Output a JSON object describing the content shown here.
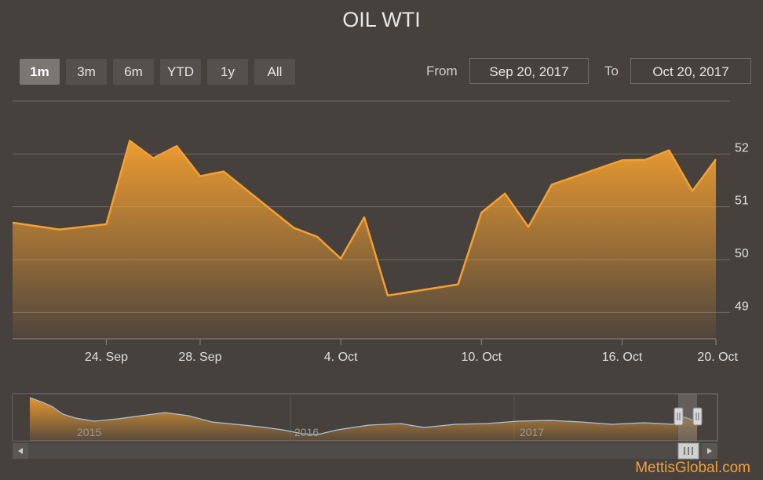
{
  "title": "OIL WTI",
  "zoom_buttons": [
    {
      "label": "1m",
      "active": true
    },
    {
      "label": "3m",
      "active": false
    },
    {
      "label": "6m",
      "active": false
    },
    {
      "label": "YTD",
      "active": false
    },
    {
      "label": "1y",
      "active": false
    },
    {
      "label": "All",
      "active": false
    }
  ],
  "range": {
    "from_label": "From",
    "from_value": "Sep 20, 2017",
    "to_label": "To",
    "to_value": "Oct 20, 2017"
  },
  "watermark": "MettisGlobal.com",
  "colors": {
    "background": "#46413d",
    "line": "#f5a030",
    "grid": "#6f6a66"
  },
  "navigator": {
    "labels": [
      "2015",
      "2016",
      "2017"
    ],
    "scroll_left_icon": "arrow-left-icon",
    "scroll_right_icon": "arrow-right-icon",
    "handle_icon": "grip-icon"
  },
  "chart_data": {
    "type": "area",
    "title": "OIL WTI",
    "x": [
      "2017-09-20",
      "2017-09-22",
      "2017-09-24",
      "2017-09-25",
      "2017-09-26",
      "2017-09-27",
      "2017-09-28",
      "2017-09-29",
      "2017-10-02",
      "2017-10-03",
      "2017-10-04",
      "2017-10-05",
      "2017-10-06",
      "2017-10-09",
      "2017-10-10",
      "2017-10-11",
      "2017-10-12",
      "2017-10-13",
      "2017-10-16",
      "2017-10-17",
      "2017-10-18",
      "2017-10-19",
      "2017-10-20"
    ],
    "values": [
      50.7,
      50.57,
      50.67,
      52.25,
      51.92,
      52.15,
      51.58,
      51.67,
      50.6,
      50.43,
      50.02,
      50.8,
      49.32,
      49.53,
      50.89,
      51.25,
      50.62,
      51.42,
      51.88,
      51.89,
      52.07,
      51.3,
      51.9
    ],
    "x_ticks": [
      "24. Sep",
      "28. Sep",
      "4. Oct",
      "10. Oct",
      "16. Oct",
      "20. Oct"
    ],
    "y_ticks": [
      "49",
      "50",
      "51",
      "52"
    ],
    "ylim": [
      48.5,
      53
    ],
    "grid": true
  }
}
